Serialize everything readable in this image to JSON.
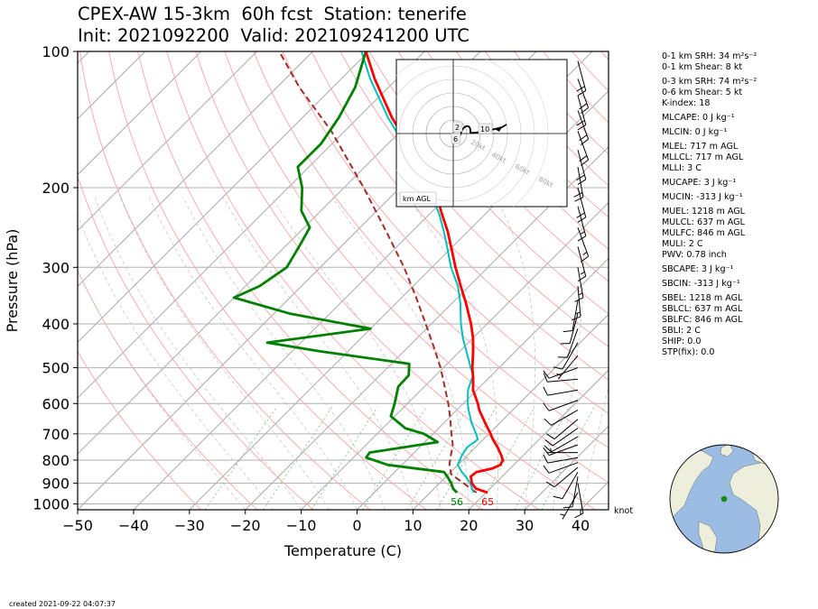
{
  "title_line1": "CPEX-AW 15-3km  60h fcst  Station: tenerife",
  "title_line2": "Init: 2021092200  Valid: 202109241200 UTC",
  "footer": "created 2021-09-22 04:07:37",
  "wind_unit": "knot",
  "hodograph": {
    "label": "km AGL",
    "ring_labels": [
      "20kt",
      "40kt",
      "60kt",
      "80kt"
    ],
    "height_markers": [
      "2",
      "6",
      "10"
    ]
  },
  "indices": [
    {
      "text": "0-1 km SRH: 34 m²s⁻²",
      "gap": false
    },
    {
      "text": "0-1 km Shear: 8 kt",
      "gap": false
    },
    {
      "text": "0-3 km SRH: 74 m²s⁻²",
      "gap": true
    },
    {
      "text": "0-6 km Shear: 5 kt",
      "gap": false
    },
    {
      "text": "K-index: 18",
      "gap": false
    },
    {
      "text": "MLCAPE: 0 J kg⁻¹",
      "gap": true
    },
    {
      "text": "MLCIN: 0 J kg⁻¹",
      "gap": true
    },
    {
      "text": "MLEL: 717 m AGL",
      "gap": true
    },
    {
      "text": "MLLCL: 717 m AGL",
      "gap": false
    },
    {
      "text": "MLLI: 3 C",
      "gap": false
    },
    {
      "text": "MUCAPE: 3 J kg⁻¹",
      "gap": true
    },
    {
      "text": "MUCIN: -313 J kg⁻¹",
      "gap": true
    },
    {
      "text": "MUEL: 1218 m AGL",
      "gap": true
    },
    {
      "text": "MULCL: 637 m AGL",
      "gap": false
    },
    {
      "text": "MULFC: 846 m AGL",
      "gap": false
    },
    {
      "text": "MULI: 2 C",
      "gap": false
    },
    {
      "text": "PWV: 0.78 inch",
      "gap": false
    },
    {
      "text": "SBCAPE: 3 J kg⁻¹",
      "gap": true
    },
    {
      "text": "SBCIN: -313 J kg⁻¹",
      "gap": true
    },
    {
      "text": "SBEL: 1218 m AGL",
      "gap": true
    },
    {
      "text": "SBLCL: 637 m AGL",
      "gap": false
    },
    {
      "text": "SBLFC: 846 m AGL",
      "gap": false
    },
    {
      "text": "SBLI: 2 C",
      "gap": false
    },
    {
      "text": "SHIP: 0.0",
      "gap": false
    },
    {
      "text": "STP(fix): 0.0",
      "gap": false
    }
  ],
  "colors": {
    "temperature": "#ff0000",
    "dewpoint": "#008000",
    "virtual_temperature": "#00bfbf",
    "parcel": "#a52a2a",
    "isobar": "#b0b0b0",
    "isotherm": "#a8a8a8",
    "dry_adiabat": "#f4a6a6",
    "moist_adiabat": "#c0c0c0",
    "mixing_ratio": "#7fc97f",
    "ocean": "#9bbce3",
    "land": "#eeeedc",
    "station_marker": "#1a8a1a"
  },
  "chart_data": {
    "type": "line",
    "xlabel": "Temperature (C)",
    "ylabel": "Pressure (hPa)",
    "xlim": [
      -50,
      45
    ],
    "ylim": [
      1030,
      100
    ],
    "y_scale": "log",
    "x_ticks": [
      -50,
      -40,
      -30,
      -20,
      -10,
      0,
      10,
      20,
      30,
      40
    ],
    "y_ticks": [
      100,
      200,
      300,
      400,
      500,
      600,
      700,
      800,
      900,
      1000
    ],
    "skew": true,
    "surface_labels": {
      "temperature": "65",
      "dewpoint": "56"
    },
    "series": [
      {
        "key": "temperature",
        "style": "solid",
        "points": [
          [
            944,
            20.3
          ],
          [
            925,
            17.5
          ],
          [
            900,
            15.8
          ],
          [
            870,
            14.4
          ],
          [
            850,
            14.6
          ],
          [
            835,
            16.8
          ],
          [
            820,
            17.6
          ],
          [
            800,
            17.2
          ],
          [
            780,
            16.0
          ],
          [
            750,
            14.0
          ],
          [
            720,
            11.7
          ],
          [
            700,
            10.3
          ],
          [
            660,
            7.2
          ],
          [
            620,
            4.0
          ],
          [
            600,
            2.6
          ],
          [
            560,
            -0.7
          ],
          [
            530,
            -2.6
          ],
          [
            500,
            -4.8
          ],
          [
            460,
            -7.6
          ],
          [
            430,
            -10.0
          ],
          [
            400,
            -12.9
          ],
          [
            360,
            -17.5
          ],
          [
            330,
            -21.5
          ],
          [
            300,
            -25.8
          ],
          [
            270,
            -30.3
          ],
          [
            250,
            -33.6
          ],
          [
            230,
            -37.5
          ],
          [
            215,
            -40.6
          ],
          [
            200,
            -44.0
          ],
          [
            180,
            -49.7
          ],
          [
            160,
            -56.5
          ],
          [
            140,
            -64.0
          ],
          [
            115,
            -74.0
          ],
          [
            100,
            -80.5
          ]
        ]
      },
      {
        "key": "dewpoint",
        "style": "solid",
        "points": [
          [
            944,
            14.8
          ],
          [
            925,
            13.4
          ],
          [
            900,
            12.1
          ],
          [
            870,
            10.2
          ],
          [
            850,
            8.8
          ],
          [
            820,
            -2.5
          ],
          [
            790,
            -7.7
          ],
          [
            770,
            -8.0
          ],
          [
            730,
            2.3
          ],
          [
            700,
            -1.6
          ],
          [
            680,
            -6.0
          ],
          [
            640,
            -10.7
          ],
          [
            600,
            -12.3
          ],
          [
            550,
            -14.7
          ],
          [
            520,
            -14.8
          ],
          [
            490,
            -16.8
          ],
          [
            460,
            -35.0
          ],
          [
            440,
            -46.0
          ],
          [
            410,
            -30.0
          ],
          [
            380,
            -47.0
          ],
          [
            350,
            -60.0
          ],
          [
            330,
            -57.5
          ],
          [
            300,
            -56.0
          ],
          [
            270,
            -57.5
          ],
          [
            245,
            -59.0
          ],
          [
            225,
            -63.5
          ],
          [
            200,
            -67.5
          ],
          [
            180,
            -72.0
          ],
          [
            160,
            -72.0
          ],
          [
            140,
            -73.5
          ],
          [
            120,
            -76.0
          ],
          [
            100,
            -80.5
          ]
        ]
      },
      {
        "key": "virtual_temperature",
        "style": "solid",
        "points": [
          [
            944,
            17.8
          ],
          [
            900,
            15.5
          ],
          [
            870,
            13.5
          ],
          [
            850,
            12.0
          ],
          [
            820,
            10.0
          ],
          [
            800,
            9.5
          ],
          [
            780,
            9.0
          ],
          [
            750,
            8.5
          ],
          [
            720,
            9.0
          ],
          [
            700,
            7.7
          ],
          [
            660,
            4.8
          ],
          [
            620,
            2.1
          ],
          [
            600,
            0.8
          ],
          [
            560,
            -1.6
          ],
          [
            520,
            -3.3
          ],
          [
            500,
            -5.1
          ],
          [
            460,
            -8.8
          ],
          [
            430,
            -11.8
          ],
          [
            400,
            -14.7
          ],
          [
            360,
            -18.5
          ],
          [
            330,
            -22.0
          ],
          [
            300,
            -26.6
          ],
          [
            270,
            -31.0
          ],
          [
            250,
            -34.3
          ],
          [
            230,
            -38.0
          ],
          [
            200,
            -44.8
          ],
          [
            180,
            -50.3
          ],
          [
            160,
            -57.2
          ],
          [
            140,
            -64.7
          ],
          [
            115,
            -74.8
          ],
          [
            100,
            -81.3
          ]
        ]
      },
      {
        "key": "parcel",
        "style": "dashed",
        "points": [
          [
            944,
            18.3
          ],
          [
            900,
            14.3
          ],
          [
            860,
            10.5
          ],
          [
            820,
            8.5
          ],
          [
            780,
            7.0
          ],
          [
            740,
            5.5
          ],
          [
            700,
            3.3
          ],
          [
            650,
            0.5
          ],
          [
            600,
            -2.7
          ],
          [
            550,
            -6.4
          ],
          [
            500,
            -10.5
          ],
          [
            450,
            -15.4
          ],
          [
            400,
            -21.0
          ],
          [
            350,
            -27.4
          ],
          [
            300,
            -35.0
          ],
          [
            250,
            -44.6
          ],
          [
            200,
            -56.5
          ],
          [
            150,
            -72.4
          ],
          [
            120,
            -86.0
          ],
          [
            100,
            -96.0
          ]
        ]
      }
    ],
    "wind_barbs": [
      {
        "p": 944,
        "speed_kt": 5,
        "dir_deg": 30
      },
      {
        "p": 900,
        "speed_kt": 10,
        "dir_deg": 350
      },
      {
        "p": 870,
        "speed_kt": 10,
        "dir_deg": 10
      },
      {
        "p": 850,
        "speed_kt": 10,
        "dir_deg": 30
      },
      {
        "p": 830,
        "speed_kt": 10,
        "dir_deg": 50
      },
      {
        "p": 810,
        "speed_kt": 10,
        "dir_deg": 70
      },
      {
        "p": 790,
        "speed_kt": 10,
        "dir_deg": 80
      },
      {
        "p": 770,
        "speed_kt": 5,
        "dir_deg": 90
      },
      {
        "p": 740,
        "speed_kt": 10,
        "dir_deg": 70
      },
      {
        "p": 710,
        "speed_kt": 10,
        "dir_deg": 60
      },
      {
        "p": 680,
        "speed_kt": 10,
        "dir_deg": 55
      },
      {
        "p": 650,
        "speed_kt": 10,
        "dir_deg": 50
      },
      {
        "p": 620,
        "speed_kt": 10,
        "dir_deg": 60
      },
      {
        "p": 590,
        "speed_kt": 10,
        "dir_deg": 70
      },
      {
        "p": 560,
        "speed_kt": 10,
        "dir_deg": 80
      },
      {
        "p": 530,
        "speed_kt": 10,
        "dir_deg": 85
      },
      {
        "p": 500,
        "speed_kt": 10,
        "dir_deg": 70
      },
      {
        "p": 470,
        "speed_kt": 5,
        "dir_deg": 40
      },
      {
        "p": 440,
        "speed_kt": 10,
        "dir_deg": 30
      },
      {
        "p": 410,
        "speed_kt": 10,
        "dir_deg": 20
      },
      {
        "p": 380,
        "speed_kt": 10,
        "dir_deg": 15
      },
      {
        "p": 355,
        "speed_kt": 10,
        "dir_deg": 10
      },
      {
        "p": 330,
        "speed_kt": 15,
        "dir_deg": 355
      },
      {
        "p": 300,
        "speed_kt": 15,
        "dir_deg": 350
      },
      {
        "p": 270,
        "speed_kt": 15,
        "dir_deg": 345
      },
      {
        "p": 245,
        "speed_kt": 15,
        "dir_deg": 340
      },
      {
        "p": 220,
        "speed_kt": 15,
        "dir_deg": 345
      },
      {
        "p": 200,
        "speed_kt": 20,
        "dir_deg": 345
      },
      {
        "p": 180,
        "speed_kt": 20,
        "dir_deg": 350
      },
      {
        "p": 165,
        "speed_kt": 20,
        "dir_deg": 345
      },
      {
        "p": 150,
        "speed_kt": 20,
        "dir_deg": 340
      },
      {
        "p": 135,
        "speed_kt": 20,
        "dir_deg": 340
      },
      {
        "p": 125,
        "speed_kt": 20,
        "dir_deg": 345
      },
      {
        "p": 115,
        "speed_kt": 20,
        "dir_deg": 340
      },
      {
        "p": 105,
        "speed_kt": 20,
        "dir_deg": 345
      }
    ]
  }
}
